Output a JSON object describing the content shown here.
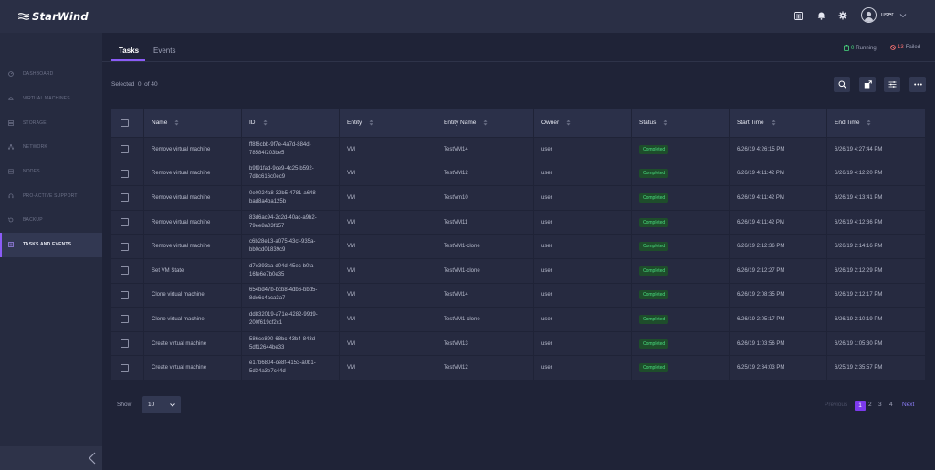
{
  "app": {
    "logo_text": "StarWind"
  },
  "colors": {
    "accent": "#8b5cf6",
    "completed_green": "#4ade80",
    "failed_red": "#f87171"
  },
  "sidebar": {
    "items": [
      {
        "label": "DASHBOARD",
        "icon": "gauge-icon"
      },
      {
        "label": "VIRTUAL MACHINES",
        "icon": "cloud-icon"
      },
      {
        "label": "STORAGE",
        "icon": "database-icon"
      },
      {
        "label": "NETWORK",
        "icon": "network-icon"
      },
      {
        "label": "NODES",
        "icon": "server-icon"
      },
      {
        "label": "PRO-ACTIVE SUPPORT",
        "icon": "support-icon"
      },
      {
        "label": "BACKUP",
        "icon": "backup-icon"
      },
      {
        "label": "TASKS AND EVENTS",
        "icon": "tasks-icon",
        "active": true
      }
    ]
  },
  "topbar": {
    "user_name": "user"
  },
  "tabs": [
    {
      "label": "Tasks",
      "active": true
    },
    {
      "label": "Events"
    }
  ],
  "status": {
    "running_count": "0",
    "running_label": "Running",
    "failed_count": "13",
    "failed_label": "Failed"
  },
  "selection": {
    "label": "Selected",
    "count": "0",
    "of_label": "of 40"
  },
  "table": {
    "columns": [
      "Name",
      "ID",
      "Entity",
      "Entity Name",
      "Owner",
      "Status",
      "Start Time",
      "End Time"
    ],
    "rows": [
      {
        "name": "Remove virtual machine",
        "id": "ff8f6cbb-9f7e-4a7d-884d-\n78584f203be5",
        "entity": "VM",
        "entity_name": "TestVM14",
        "owner": "user",
        "status": "Completed",
        "start": "6/26/19 4:26:15 PM",
        "end": "6/26/19 4:27:44 PM"
      },
      {
        "name": "Remove virtual machine",
        "id": "b9f91fad-9ce9-4c25-b592-\n7d8c616c0ec9",
        "entity": "VM",
        "entity_name": "TestVM12",
        "owner": "user",
        "status": "Completed",
        "start": "6/26/19 4:11:42 PM",
        "end": "6/26/19 4:12:20 PM"
      },
      {
        "name": "Remove virtual machine",
        "id": "0e0024a8-32b5-4781-a648-\nbad8a4ba125b",
        "entity": "VM",
        "entity_name": "TestVm10",
        "owner": "user",
        "status": "Completed",
        "start": "6/26/19 4:11:42 PM",
        "end": "6/26/19 4:13:41 PM"
      },
      {
        "name": "Remove virtual machine",
        "id": "83d6ac94-2c2d-40ac-a9b2-\n79ee8a03f157",
        "entity": "VM",
        "entity_name": "TestVM11",
        "owner": "user",
        "status": "Completed",
        "start": "6/26/19 4:11:42 PM",
        "end": "6/26/19 4:12:36 PM"
      },
      {
        "name": "Remove virtual machine",
        "id": "c6b28e13-a075-43cf-935a-\nbb0cd01839c9",
        "entity": "VM",
        "entity_name": "TestVM1-clone",
        "owner": "user",
        "status": "Completed",
        "start": "6/26/19 2:12:36 PM",
        "end": "6/26/19 2:14:16 PM"
      },
      {
        "name": "Set VM State",
        "id": "d7e393ca-d04d-45ec-b0fa-\n16fe6e7b0e35",
        "entity": "VM",
        "entity_name": "TestVM1-clone",
        "owner": "user",
        "status": "Completed",
        "start": "6/26/19 2:12:27 PM",
        "end": "6/26/19 2:12:29 PM"
      },
      {
        "name": "Clone virtual machine",
        "id": "654bd47b-bcb8-4db6-bbd5-\n8de6c4aca3a7",
        "entity": "VM",
        "entity_name": "TestVM14",
        "owner": "user",
        "status": "Completed",
        "start": "6/26/19 2:08:35 PM",
        "end": "6/26/19 2:12:17 PM"
      },
      {
        "name": "Clone virtual machine",
        "id": "dd832019-a71e-4282-99d9-\n200f619cf2c1",
        "entity": "VM",
        "entity_name": "TestVM1-clone",
        "owner": "user",
        "status": "Completed",
        "start": "6/26/19 2:05:17 PM",
        "end": "6/26/19 2:10:19 PM"
      },
      {
        "name": "Create virtual machine",
        "id": "586ce890-68bc-43b4-843d-\n5df12644be33",
        "entity": "VM",
        "entity_name": "TestVM13",
        "owner": "user",
        "status": "Completed",
        "start": "6/26/19 1:03:56 PM",
        "end": "6/26/19 1:05:30 PM"
      },
      {
        "name": "Create virtual machine",
        "id": "e17b6804-ce8f-4153-a0b1-\n5d34a3e7c44d",
        "entity": "VM",
        "entity_name": "TestVM12",
        "owner": "user",
        "status": "Completed",
        "start": "6/25/19 2:34:03 PM",
        "end": "6/25/19 2:35:57 PM"
      }
    ]
  },
  "footer": {
    "show_label": "Show",
    "page_size": "10",
    "pagination": {
      "previous": "Previous",
      "pages": [
        "1",
        "2",
        "3",
        "4"
      ],
      "current": "1",
      "next": "Next"
    }
  }
}
